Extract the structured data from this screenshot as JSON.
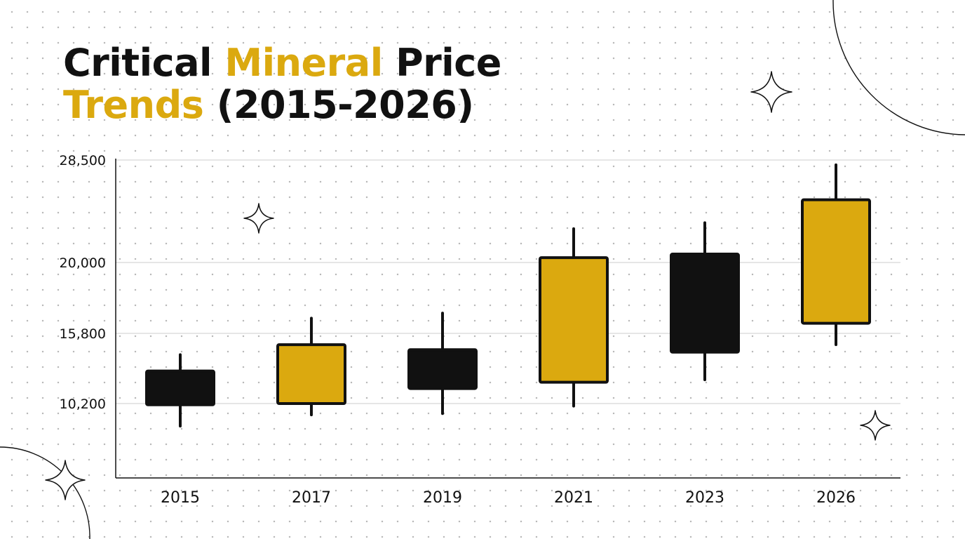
{
  "title": {
    "part1": "Critical ",
    "part2": "Mineral",
    "part3": " Price",
    "part4": "Trends",
    "part5": " (2015-2026)"
  },
  "colors": {
    "accent": "#DBA90F",
    "bearish": "#111111",
    "gridline": "#D6D6D6",
    "text": "#111111"
  },
  "chart_data": {
    "type": "candlestick",
    "categories": [
      "2015",
      "2017",
      "2019",
      "2021",
      "2023",
      "2026"
    ],
    "ytick_values": [
      10200,
      15800,
      20000,
      28500
    ],
    "ytick_labels": [
      "10,200",
      "15,800",
      "20,000",
      "28,500"
    ],
    "candles": [
      {
        "x": "2015",
        "open": 12800,
        "close": 10100,
        "high": 14100,
        "low": 8400,
        "color": "black"
      },
      {
        "x": "2017",
        "open": 10200,
        "close": 14900,
        "high": 16700,
        "low": 9300,
        "color": "gold"
      },
      {
        "x": "2019",
        "open": 14500,
        "close": 11400,
        "high": 17000,
        "low": 9400,
        "color": "black"
      },
      {
        "x": "2021",
        "open": 11900,
        "close": 20400,
        "high": 22800,
        "low": 10000,
        "color": "gold"
      },
      {
        "x": "2023",
        "open": 20700,
        "close": 14300,
        "high": 23300,
        "low": 12100,
        "color": "black"
      },
      {
        "x": "2026",
        "open": 16400,
        "close": 25200,
        "high": 28100,
        "low": 14900,
        "color": "gold"
      }
    ],
    "grid": true,
    "legend": "none"
  }
}
